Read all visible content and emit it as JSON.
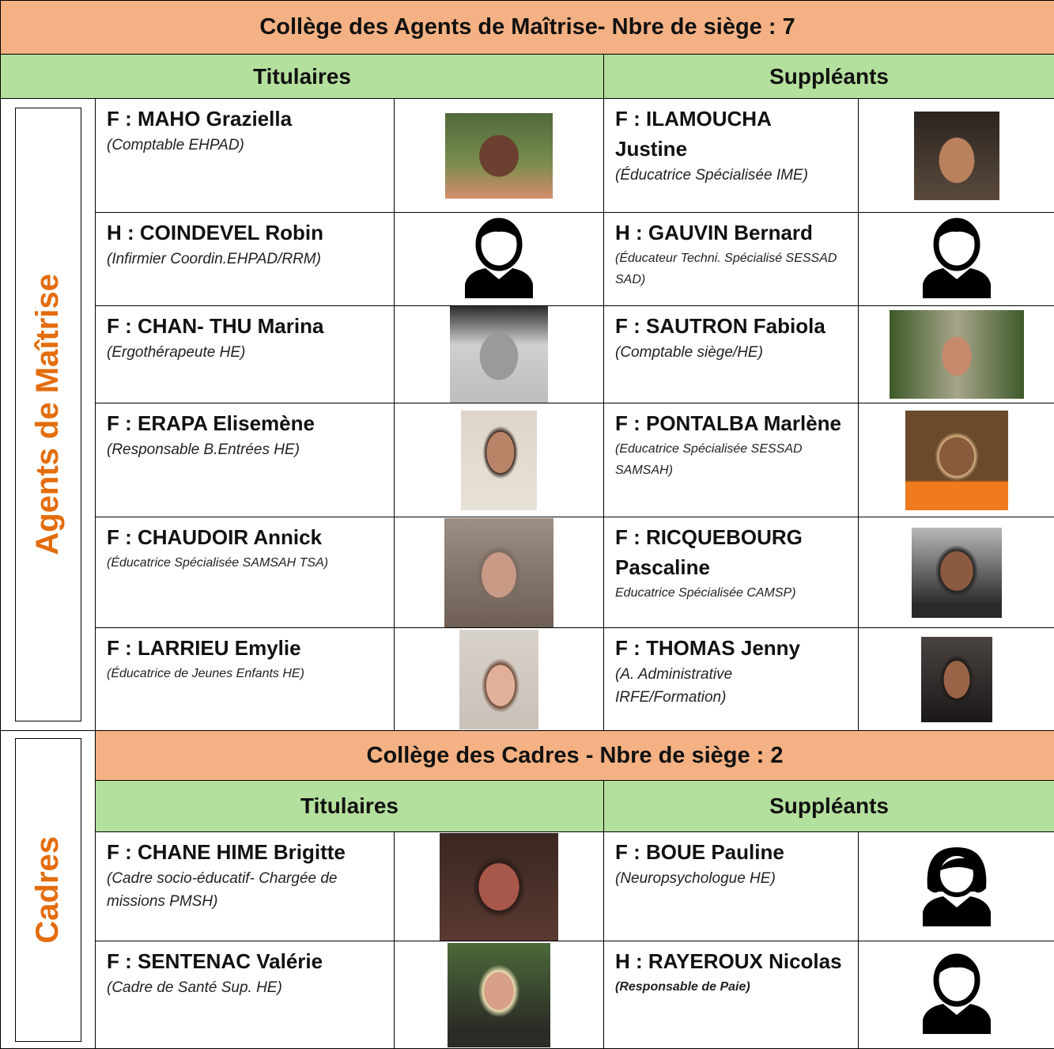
{
  "agents_maitrise": {
    "title": "Collège des Agents de Maîtrise- Nbre de siège : 7",
    "side_label": "Agents de Maîtrise",
    "titulaires": "Titulaires",
    "suppleants": "Suppléants",
    "rows": [
      {
        "titulaire": {
          "name": "F : MAHO Graziella",
          "role": "(Comptable EHPAD)"
        },
        "suppleant": {
          "name": "F :  ILAMOUCHA Justine",
          "role": "(Éducatrice Spécialisée IME)"
        }
      },
      {
        "titulaire": {
          "name": "H : COINDEVEL Robin",
          "role": "(Infirmier Coordin.EHPAD/RRM)"
        },
        "suppleant": {
          "name": "H : GAUVIN Bernard",
          "role": "(Éducateur Techni. Spécialisé SESSAD SAD)"
        }
      },
      {
        "titulaire": {
          "name": "F :  CHAN- THU Marina",
          "role": "(Ergothérapeute HE)"
        },
        "suppleant": {
          "name": "F : SAUTRON Fabiola",
          "role": "(Comptable siège/HE)"
        }
      },
      {
        "titulaire": {
          "name": "F : ERAPA Elisemène",
          "role": "(Responsable B.Entrées HE)"
        },
        "suppleant": {
          "name": "F : PONTALBA Marlène",
          "role": "(Educatrice Spécialisée SESSAD SAMSAH)"
        }
      },
      {
        "titulaire": {
          "name": "F : CHAUDOIR Annick",
          "role": "(Éducatrice Spécialisée SAMSAH TSA)"
        },
        "suppleant": {
          "name": "F : RICQUEBOURG Pascaline",
          "role": "Educatrice Spécialisée CAMSP)"
        }
      },
      {
        "titulaire": {
          "name": "F : LARRIEU Emylie",
          "role": "(Éducatrice de Jeunes Enfants HE)"
        },
        "suppleant": {
          "name": "F : THOMAS Jenny",
          "role": "(A. Administrative IRFE/Formation)"
        }
      }
    ]
  },
  "cadres": {
    "title": "Collège des Cadres - Nbre de siège : 2",
    "side_label": "Cadres",
    "titulaires": "Titulaires",
    "suppleants": "Suppléants",
    "rows": [
      {
        "titulaire": {
          "name": "F : CHANE HIME Brigitte",
          "role": "(Cadre socio-éducatif- Chargée de missions PMSH)"
        },
        "suppleant": {
          "name": "F : BOUE Pauline",
          "role": "(Neuropsychologue HE)"
        }
      },
      {
        "titulaire": {
          "name": "F : SENTENAC Valérie",
          "role": "(Cadre de Santé Sup. HE)"
        },
        "suppleant": {
          "name": "H : RAYEROUX Nicolas",
          "role": "(Responsable de Paie)"
        }
      }
    ]
  }
}
